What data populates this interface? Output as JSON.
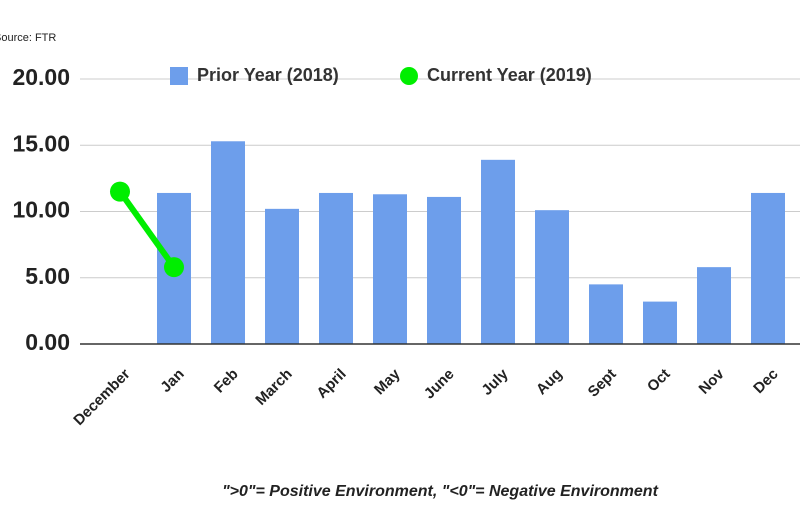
{
  "chart_data": {
    "type": "bar",
    "source": "Source: FTR",
    "note": "\">0\"= Positive Environment, \"<0\"= Negative Environment",
    "categories": [
      "December",
      "Jan",
      "Feb",
      "March",
      "April",
      "May",
      "June",
      "July",
      "Aug",
      "Sept",
      "Oct",
      "Nov",
      "Dec"
    ],
    "series": [
      {
        "name": "Prior Year (2018)",
        "type": "bar",
        "color": "#6d9eeb",
        "values": [
          null,
          11.4,
          15.3,
          10.2,
          11.4,
          11.3,
          11.1,
          13.9,
          10.1,
          4.5,
          3.2,
          5.8,
          11.4
        ]
      },
      {
        "name": "Current Year (2019)",
        "type": "line",
        "color": "#00ee00",
        "values": [
          11.5,
          5.8,
          null,
          null,
          null,
          null,
          null,
          null,
          null,
          null,
          null,
          null,
          null
        ]
      }
    ],
    "ylim": [
      0,
      20
    ],
    "yticks": [
      {
        "value": 0,
        "label": "0.00"
      },
      {
        "value": 5,
        "label": "5.00"
      },
      {
        "value": 10,
        "label": "10.00"
      },
      {
        "value": 15,
        "label": "15.00"
      },
      {
        "value": 20,
        "label": "20.00"
      }
    ],
    "grid": true,
    "legend": "top"
  }
}
